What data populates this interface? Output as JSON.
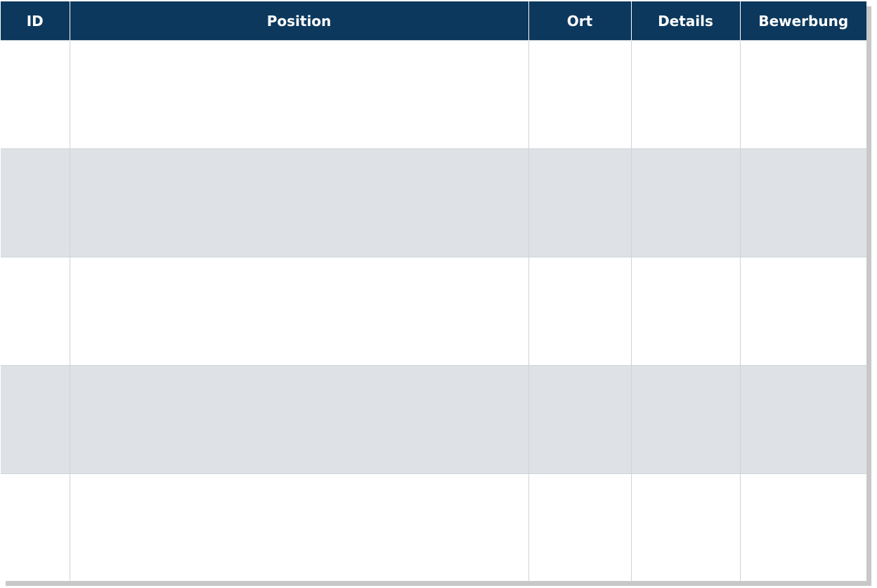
{
  "table": {
    "columns": [
      "ID",
      "Position",
      "Ort",
      "Details",
      "Bewerbung"
    ],
    "rows": [
      [
        "",
        "",
        "",
        "",
        ""
      ],
      [
        "",
        "",
        "",
        "",
        ""
      ],
      [
        "",
        "",
        "",
        "",
        ""
      ],
      [
        "",
        "",
        "",
        "",
        ""
      ],
      [
        "",
        "",
        "",
        "",
        ""
      ]
    ]
  },
  "colors": {
    "header_bg": "#0c385d",
    "alt_row_bg": "#dee2e6"
  }
}
